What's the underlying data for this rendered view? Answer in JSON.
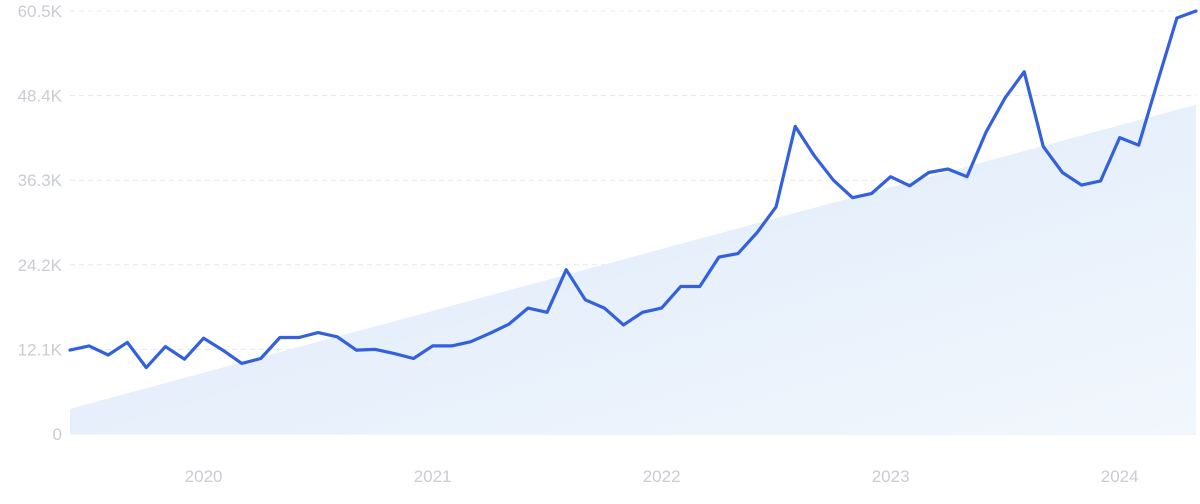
{
  "chart_data": {
    "type": "line",
    "title": "",
    "xlabel": "",
    "ylabel": "",
    "ylim": [
      0,
      60500
    ],
    "y_ticks": [
      {
        "value": 0,
        "label": "0"
      },
      {
        "value": 12100,
        "label": "12.1K"
      },
      {
        "value": 24200,
        "label": "24.2K"
      },
      {
        "value": 36300,
        "label": "36.3K"
      },
      {
        "value": 48400,
        "label": "48.4K"
      },
      {
        "value": 60500,
        "label": "60.5K"
      }
    ],
    "x_ticks": [
      {
        "value": "2020-01",
        "label": "2020"
      },
      {
        "value": "2021-01",
        "label": "2021"
      },
      {
        "value": "2022-01",
        "label": "2022"
      },
      {
        "value": "2023-01",
        "label": "2023"
      },
      {
        "value": "2024-01",
        "label": "2024"
      }
    ],
    "grid": "horizontal dashed",
    "colors": {
      "line": "#3360dd",
      "trend_fill_top": "#dbe8f9",
      "trend_fill_bottom": "#f2f7fd",
      "grid": "#e6e8ec"
    },
    "series": [
      {
        "x": [
          "2019-06",
          "2019-07",
          "2019-08",
          "2019-09",
          "2019-10",
          "2019-11",
          "2019-12",
          "2020-01",
          "2020-02",
          "2020-03",
          "2020-04",
          "2020-05",
          "2020-06",
          "2020-07",
          "2020-08",
          "2020-09",
          "2020-10",
          "2020-11",
          "2020-12",
          "2021-01",
          "2021-02",
          "2021-03",
          "2021-04",
          "2021-05",
          "2021-06",
          "2021-07",
          "2021-08",
          "2021-09",
          "2021-10",
          "2021-11",
          "2021-12",
          "2022-01",
          "2022-02",
          "2022-03",
          "2022-04",
          "2022-05",
          "2022-06",
          "2022-07",
          "2022-08",
          "2022-09",
          "2022-10",
          "2022-11",
          "2022-12",
          "2023-01",
          "2023-02",
          "2023-03",
          "2023-04",
          "2023-05",
          "2023-06",
          "2023-07",
          "2023-08",
          "2023-09",
          "2023-10",
          "2023-11",
          "2023-12",
          "2024-01",
          "2024-02",
          "2024-03",
          "2024-04",
          "2024-05"
        ],
        "y": [
          12000,
          12600,
          11300,
          13100,
          9500,
          12500,
          10700,
          13700,
          12000,
          10100,
          10800,
          13800,
          13800,
          14500,
          13900,
          12000,
          12100,
          11500,
          10800,
          12600,
          12600,
          13200,
          14400,
          15700,
          18000,
          17400,
          23500,
          19200,
          18000,
          15600,
          17400,
          18000,
          21100,
          21100,
          25300,
          25800,
          28800,
          32500,
          44000,
          39800,
          36300,
          33800,
          34400,
          36800,
          35500,
          37400,
          37900,
          36800,
          43200,
          48100,
          51800,
          41100,
          37400,
          35600,
          36200,
          42400,
          41300,
          50500,
          59500,
          60500
        ]
      }
    ],
    "trend": {
      "start": {
        "x": "2019-06",
        "y": 3600
      },
      "end": {
        "x": "2024-05",
        "y": 47100
      }
    }
  }
}
